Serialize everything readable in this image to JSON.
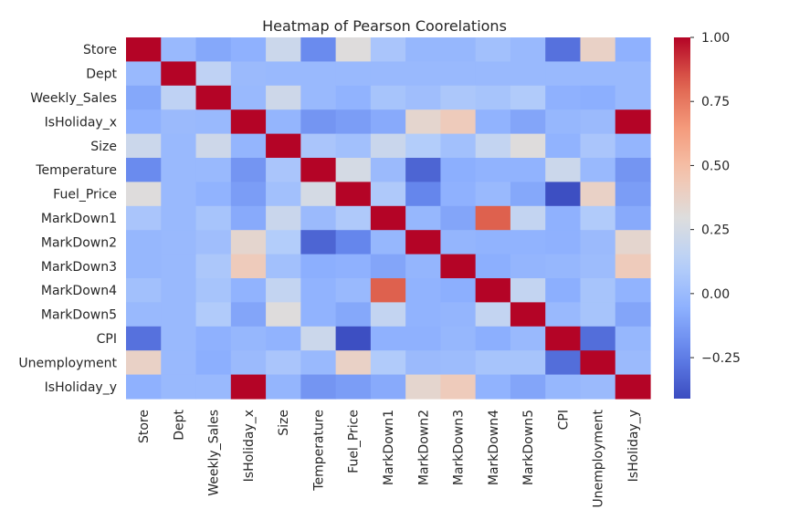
{
  "chart_data": {
    "type": "heatmap",
    "title": "Heatmap of Pearson Coorelations",
    "xlabel": "",
    "ylabel": "",
    "labels": [
      "Store",
      "Dept",
      "Weekly_Sales",
      "IsHoliday_x",
      "Size",
      "Temperature",
      "Fuel_Price",
      "MarkDown1",
      "MarkDown2",
      "MarkDown3",
      "MarkDown4",
      "MarkDown5",
      "CPI",
      "Unemployment",
      "IsHoliday_y"
    ],
    "values": [
      [
        1.0,
        -0.01,
        -0.09,
        -0.05,
        0.21,
        -0.2,
        0.3,
        0.06,
        -0.02,
        -0.02,
        0.03,
        -0.01,
        -0.29,
        0.38,
        -0.05
      ],
      [
        -0.01,
        1.0,
        0.15,
        0.0,
        -0.01,
        -0.01,
        -0.01,
        -0.01,
        -0.01,
        -0.01,
        -0.01,
        -0.01,
        -0.01,
        -0.01,
        -0.01
      ],
      [
        -0.09,
        0.15,
        1.0,
        -0.01,
        0.22,
        -0.01,
        -0.04,
        0.05,
        0.02,
        0.07,
        0.05,
        0.09,
        -0.05,
        -0.06,
        -0.01
      ],
      [
        -0.05,
        0.0,
        -0.01,
        1.0,
        -0.03,
        -0.16,
        -0.13,
        -0.08,
        0.35,
        0.42,
        -0.04,
        -0.1,
        -0.02,
        0.0,
        1.0
      ],
      [
        0.21,
        -0.01,
        0.22,
        -0.03,
        1.0,
        0.06,
        0.03,
        0.2,
        0.1,
        0.03,
        0.17,
        0.3,
        -0.04,
        0.06,
        -0.03
      ],
      [
        -0.2,
        -0.01,
        -0.01,
        -0.16,
        0.06,
        1.0,
        0.25,
        0.0,
        -0.33,
        -0.06,
        -0.04,
        -0.04,
        0.21,
        -0.01,
        -0.16
      ],
      [
        0.3,
        -0.01,
        -0.04,
        -0.13,
        0.03,
        0.25,
        1.0,
        0.08,
        -0.22,
        -0.05,
        -0.01,
        -0.09,
        -0.4,
        0.38,
        -0.13
      ],
      [
        0.06,
        -0.01,
        0.05,
        -0.08,
        0.2,
        0.0,
        0.08,
        1.0,
        -0.02,
        -0.1,
        0.82,
        0.17,
        -0.05,
        0.09,
        -0.08
      ],
      [
        -0.02,
        -0.01,
        0.02,
        0.35,
        0.1,
        -0.33,
        -0.22,
        -0.02,
        1.0,
        -0.03,
        -0.04,
        -0.04,
        -0.05,
        0.0,
        0.35
      ],
      [
        -0.02,
        -0.01,
        0.07,
        0.42,
        0.03,
        -0.06,
        -0.05,
        -0.1,
        -0.03,
        1.0,
        -0.06,
        -0.03,
        -0.02,
        0.01,
        0.42
      ],
      [
        0.03,
        -0.01,
        0.05,
        -0.04,
        0.17,
        -0.04,
        -0.01,
        0.82,
        -0.04,
        -0.06,
        1.0,
        0.17,
        -0.06,
        0.05,
        -0.04
      ],
      [
        -0.01,
        -0.01,
        0.09,
        -0.1,
        0.3,
        -0.04,
        -0.09,
        0.17,
        -0.04,
        -0.03,
        0.17,
        1.0,
        -0.01,
        0.05,
        -0.1
      ],
      [
        -0.29,
        -0.01,
        -0.05,
        -0.02,
        -0.04,
        0.21,
        -0.4,
        -0.05,
        -0.05,
        -0.02,
        -0.06,
        -0.01,
        1.0,
        -0.3,
        -0.02
      ],
      [
        0.38,
        -0.01,
        -0.06,
        0.0,
        0.06,
        -0.01,
        0.38,
        0.09,
        0.0,
        0.01,
        0.05,
        0.05,
        -0.3,
        1.0,
        0.0
      ],
      [
        -0.05,
        -0.01,
        -0.01,
        1.0,
        -0.03,
        -0.16,
        -0.13,
        -0.08,
        0.35,
        0.42,
        -0.04,
        -0.1,
        -0.02,
        0.0,
        1.0
      ]
    ],
    "colormap": "coolwarm",
    "vmin": -0.41,
    "vmax": 1.0,
    "colorbar_ticks": [
      1.0,
      0.75,
      0.5,
      0.25,
      0.0,
      -0.25
    ],
    "colorbar_tick_labels": [
      "1.00",
      "0.75",
      "0.50",
      "0.25",
      "0.00",
      "−0.25"
    ],
    "colors": {
      "low": "#3b4cc0",
      "mid": "#dddddd",
      "high": "#b40426",
      "text": "#262626"
    }
  }
}
